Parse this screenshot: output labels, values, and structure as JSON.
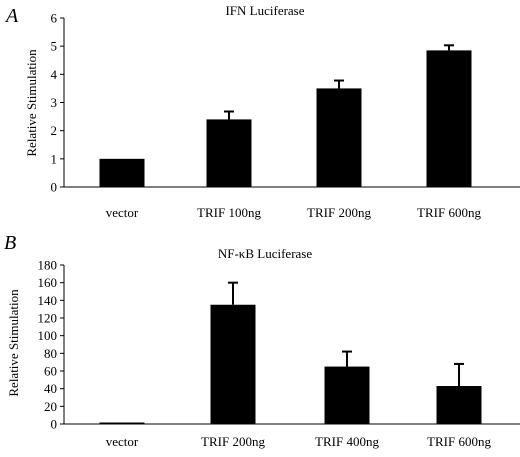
{
  "chart_data": [
    {
      "panel": "A",
      "type": "bar",
      "title": "IFN Luciferase",
      "ylabel": "Relative Stimulation",
      "xlabel": "",
      "categories": [
        "vector",
        "TRIF 100ng",
        "TRIF 200ng",
        "TRIF 600ng"
      ],
      "values": [
        1.0,
        2.4,
        3.5,
        4.85
      ],
      "errors": [
        0.0,
        0.28,
        0.28,
        0.18
      ],
      "ylim": [
        0,
        6
      ],
      "yticks": [
        "0",
        "1",
        "2",
        "3",
        "4",
        "5",
        "6"
      ],
      "bar_color": "#000000",
      "grid": false,
      "legend": "none"
    },
    {
      "panel": "B",
      "type": "bar",
      "title": "NF-κB Luciferase",
      "ylabel": "Relative Stimulation",
      "xlabel": "",
      "categories": [
        "vector",
        "TRIF 200ng",
        "TRIF 400ng",
        "TRIF 600ng"
      ],
      "values": [
        1,
        135,
        65,
        43
      ],
      "errors": [
        0,
        25,
        17,
        25
      ],
      "ylim": [
        0,
        180
      ],
      "yticks": [
        "0",
        "20",
        "40",
        "60",
        "80",
        "100",
        "120",
        "140",
        "160",
        "180"
      ],
      "bar_color": "#000000",
      "grid": false,
      "legend": "none"
    }
  ]
}
